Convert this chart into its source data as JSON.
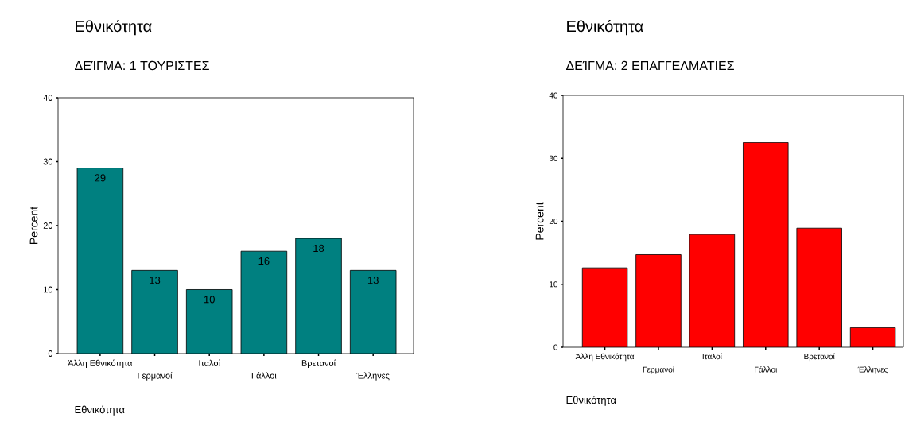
{
  "chart_data": [
    {
      "type": "bar",
      "title": "Εθνικότητα",
      "subtitle": "ΔΕΊΓΜΑ:  1   ΤΟΥΡΙΣΤΕΣ",
      "xlabel": "Εθνικότητα",
      "ylabel": "Percent",
      "categories": [
        "Άλλη Εθνικότητα",
        "Γερμανοί",
        "Ιταλοί",
        "Γάλλοι",
        "Βρετανοί",
        "Έλληνες"
      ],
      "values": [
        29,
        13,
        10,
        16,
        18,
        13
      ],
      "color": "#008080",
      "data_labels": true,
      "ylim": [
        0,
        40
      ],
      "yticks": [
        0,
        10,
        20,
        30,
        40
      ]
    },
    {
      "type": "bar",
      "title": "Εθνικότητα",
      "subtitle": "ΔΕΊΓΜΑ:  2   ΕΠΑΓΓΕΛΜΑΤΙΕΣ",
      "xlabel": "Εθνικότητα",
      "ylabel": "Percent",
      "categories": [
        "Άλλη Εθνικότητα",
        "Γερμανοί",
        "Ιταλοί",
        "Γάλλοι",
        "Βρετανοί",
        "Έλληνες"
      ],
      "values": [
        12.6,
        14.7,
        17.9,
        32.5,
        18.9,
        3.1
      ],
      "color": "#ff0000",
      "ylim": [
        0,
        40
      ],
      "yticks": [
        0,
        10,
        20,
        30,
        40
      ]
    }
  ]
}
